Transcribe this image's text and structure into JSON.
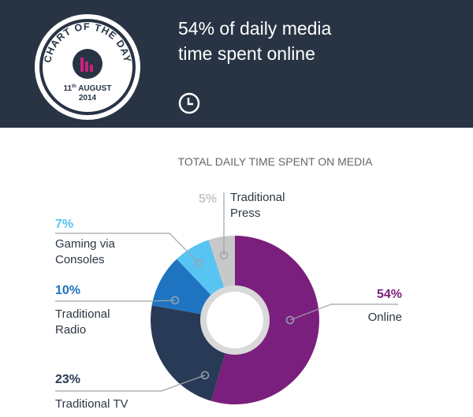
{
  "header": {
    "badge": {
      "title": "CHART OF THE DAY",
      "date": "11th AUGUST 2014",
      "icon": "bar-chart-icon"
    },
    "headline_line1": "54% of daily media",
    "headline_line2": "time spent online",
    "clock_icon": "clock-icon"
  },
  "colors": {
    "header_bg": "#283444",
    "online": "#7b1f7e",
    "traditional_tv": "#283a55",
    "traditional_radio": "#1f74c2",
    "gaming_via_consoles": "#57c4f2",
    "traditional_press": "#c8c8c8",
    "badge_accent": "#c8207e"
  },
  "chart_data": {
    "type": "pie",
    "title": "TOTAL DAILY TIME SPENT ON MEDIA",
    "unit": "%",
    "slices": [
      {
        "label": "Online",
        "value": 54,
        "display": "54%",
        "color": "#7b1f7e"
      },
      {
        "label": "Traditional TV",
        "value": 23,
        "display": "23%",
        "color": "#283a55"
      },
      {
        "label": "Traditional Radio",
        "value": 10,
        "display": "10%",
        "color": "#1f74c2"
      },
      {
        "label": "Gaming via Consoles",
        "value": 7,
        "display": "7%",
        "color": "#57c4f2"
      },
      {
        "label": "Traditional Press",
        "value": 5,
        "display": "5%",
        "color": "#c8c8c8"
      }
    ]
  }
}
